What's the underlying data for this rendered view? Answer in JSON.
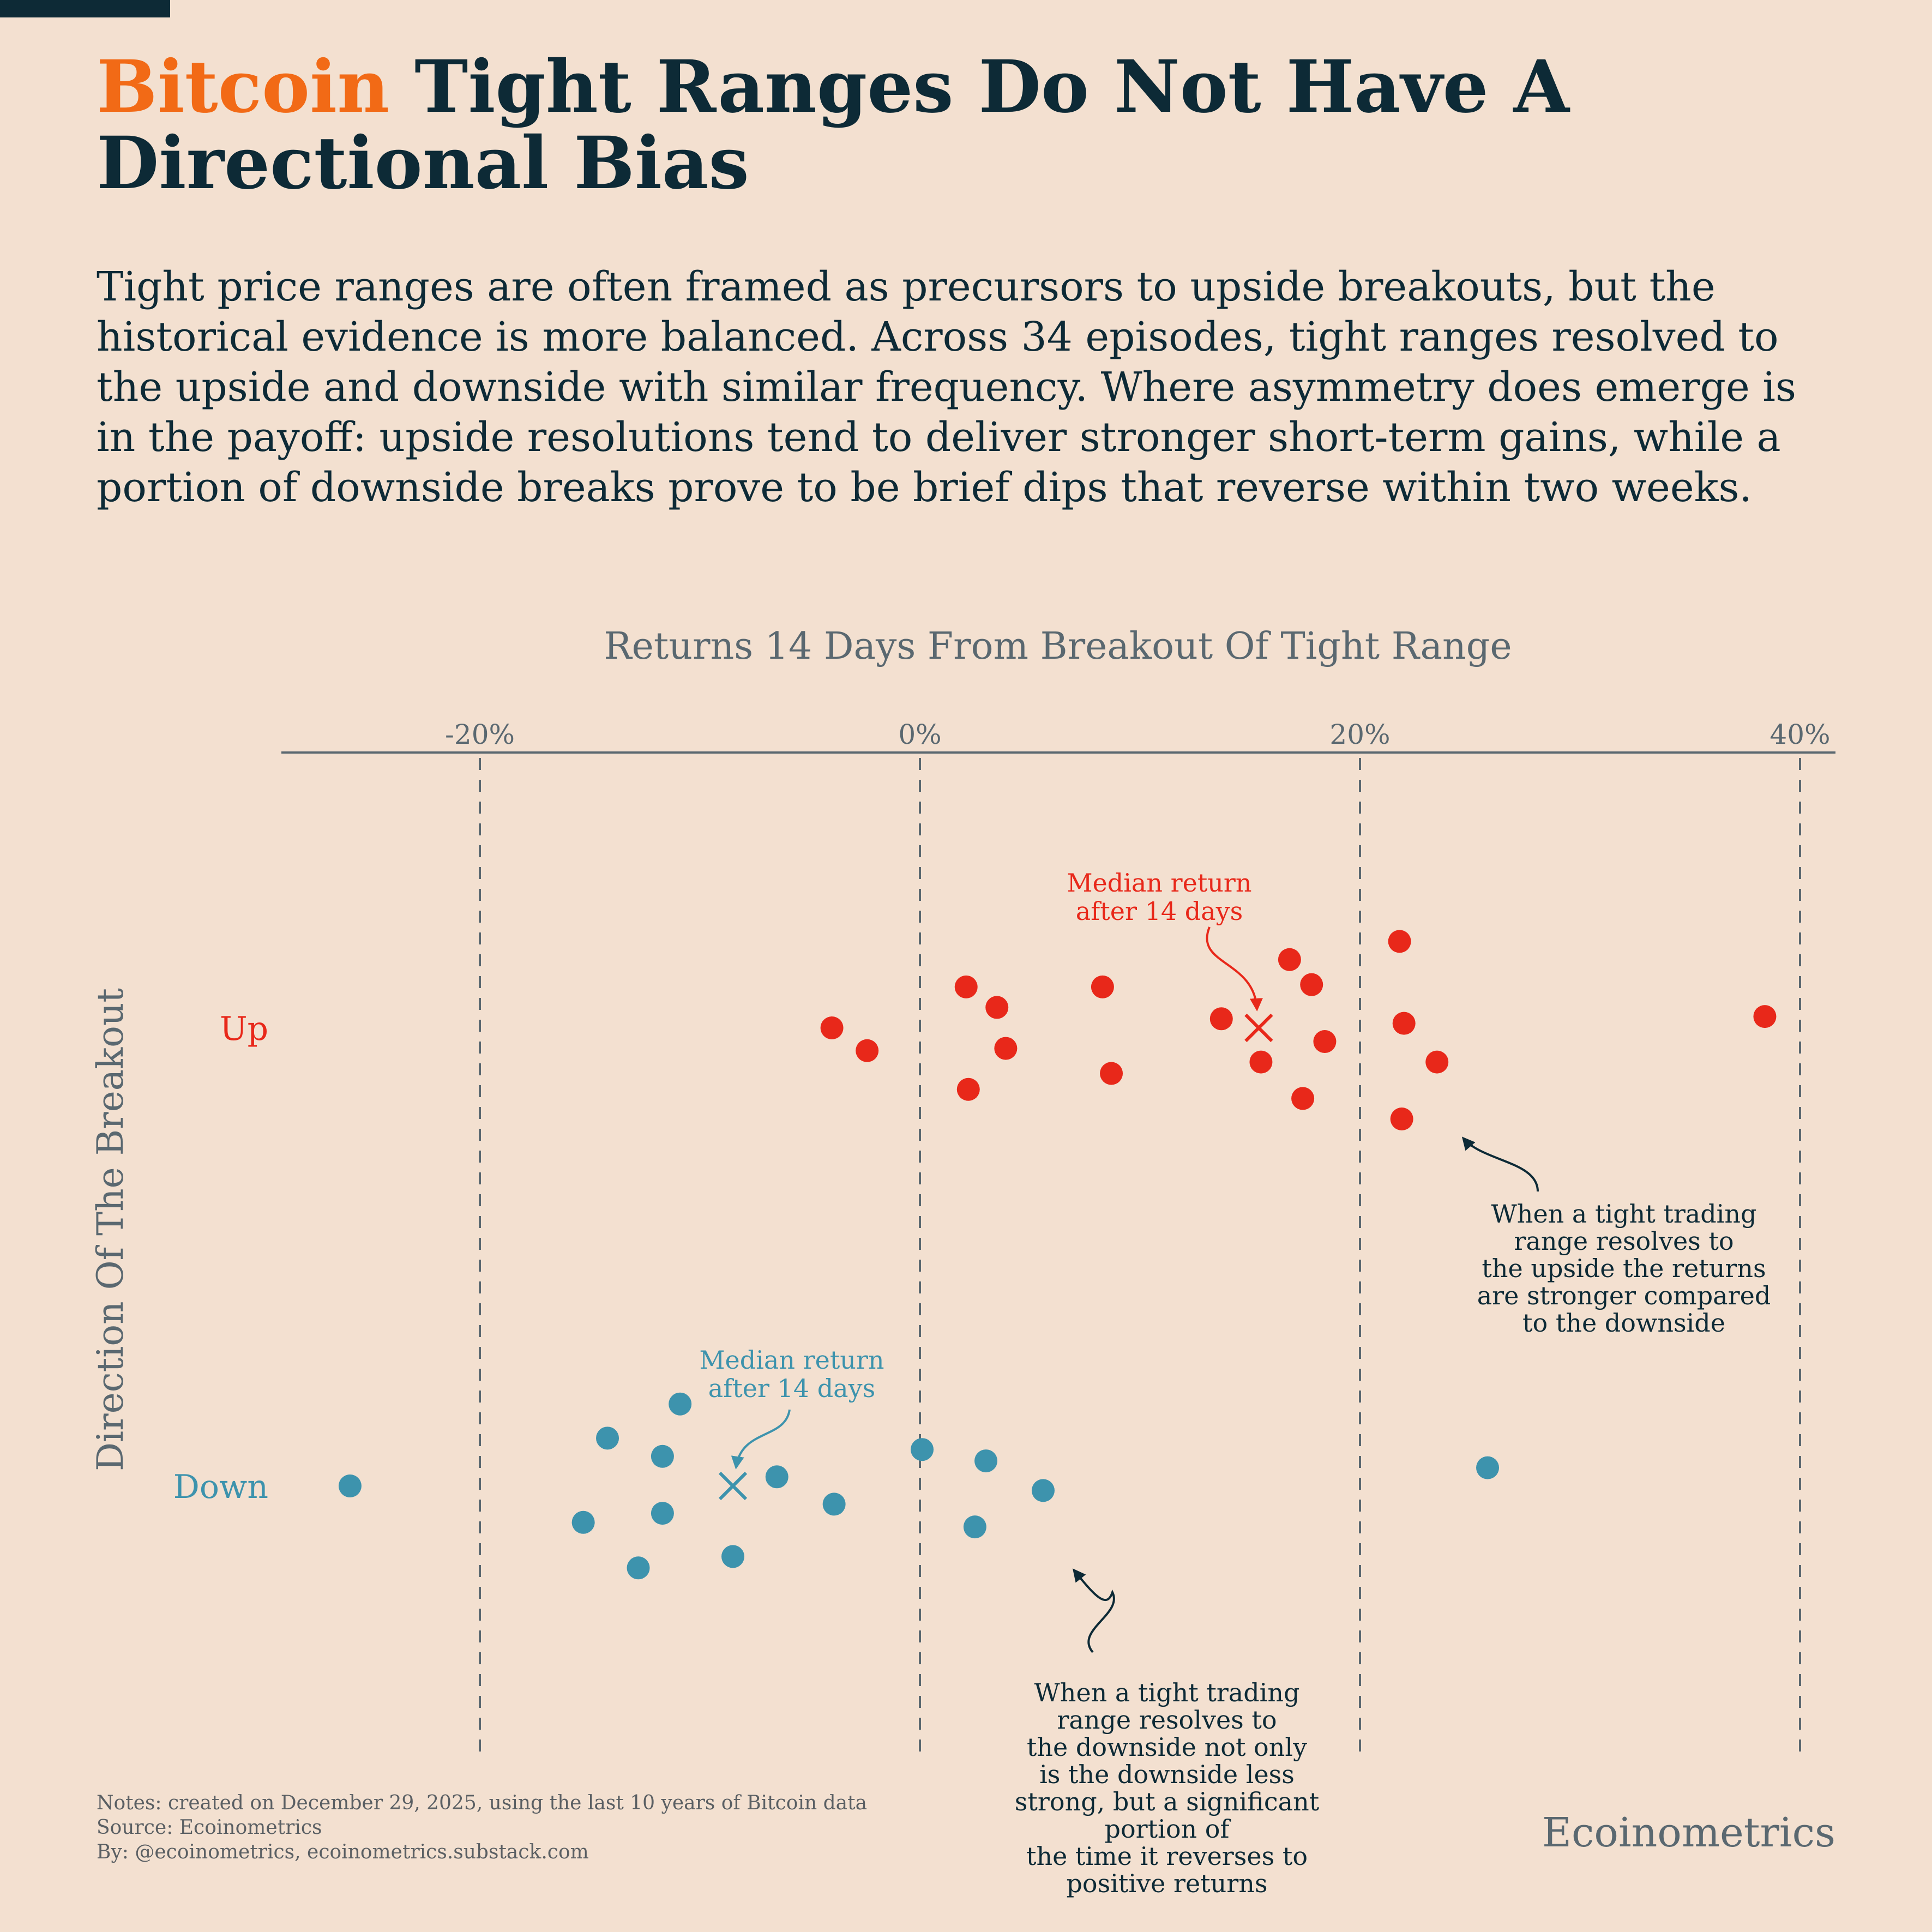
{
  "header": {
    "title_accent": "Bitcoin",
    "title_rest": " Tight Ranges Do Not Have A Directional Bias",
    "subtitle": "Tight price ranges are often framed as precursors to upside breakouts, but the historical evidence is more balanced. Across 34 episodes, tight ranges resolved to the upside and downside with similar frequency. Where asymmetry does emerge is in the payoff: upside resolutions tend to deliver stronger short-term gains, while a portion of downside breaks prove to be brief dips that reverse within two weeks."
  },
  "colors": {
    "background": "#f3e0d0",
    "accent": "#f26a16",
    "up": "#e8281a",
    "down": "#3d93ad",
    "text_dark": "#0d2a36",
    "axis_gray": "#5a6870"
  },
  "chart_data": {
    "type": "scatter",
    "title": "Returns 14 Days From Breakout Of Tight Range",
    "xlabel": "Returns 14 Days From Breakout Of Tight Range",
    "ylabel": "Direction Of The Breakout",
    "x_axis_position": "top",
    "x_ticks": [
      -20,
      0,
      20,
      40
    ],
    "x_tick_labels": [
      "-20%",
      "0%",
      "20%",
      "40%"
    ],
    "xlim": [
      -29,
      41.6
    ],
    "y_categories": [
      "Up",
      "Down"
    ],
    "jittered": true,
    "grid": "vertical dashed at ticks",
    "legend": "none",
    "series": [
      {
        "name": "Up",
        "color": "#e8281a",
        "points": [
          {
            "x": 21.8,
            "jitter": -0.38
          },
          {
            "x": 16.8,
            "jitter": -0.3
          },
          {
            "x": 2.1,
            "jitter": -0.18
          },
          {
            "x": 8.3,
            "jitter": -0.18
          },
          {
            "x": 17.8,
            "jitter": -0.19
          },
          {
            "x": 3.5,
            "jitter": -0.09
          },
          {
            "x": 13.7,
            "jitter": -0.04
          },
          {
            "x": 22.0,
            "jitter": -0.02
          },
          {
            "x": 38.4,
            "jitter": -0.05
          },
          {
            "x": -4.0,
            "jitter": 0.0
          },
          {
            "x": 18.4,
            "jitter": 0.06
          },
          {
            "x": -2.4,
            "jitter": 0.1
          },
          {
            "x": 3.9,
            "jitter": 0.09
          },
          {
            "x": 15.5,
            "jitter": 0.15
          },
          {
            "x": 23.5,
            "jitter": 0.15
          },
          {
            "x": 8.7,
            "jitter": 0.2
          },
          {
            "x": 2.2,
            "jitter": 0.27
          },
          {
            "x": 17.4,
            "jitter": 0.31
          },
          {
            "x": 21.9,
            "jitter": 0.4
          }
        ],
        "median": 15.4,
        "median_annotation": "Median return\nafter 14 days",
        "annotation": "When a tight trading\nrange resolves to\nthe upside the returns\nare stronger compared\nto the downside"
      },
      {
        "name": "Down",
        "color": "#3d93ad",
        "points": [
          {
            "x": -10.9,
            "jitter": -0.36
          },
          {
            "x": -14.2,
            "jitter": -0.21
          },
          {
            "x": -11.7,
            "jitter": -0.13
          },
          {
            "x": 0.1,
            "jitter": -0.16
          },
          {
            "x": 3.0,
            "jitter": -0.11
          },
          {
            "x": 25.8,
            "jitter": -0.08
          },
          {
            "x": -25.9,
            "jitter": 0.0
          },
          {
            "x": -6.5,
            "jitter": -0.04
          },
          {
            "x": 5.6,
            "jitter": 0.02
          },
          {
            "x": -3.9,
            "jitter": 0.08
          },
          {
            "x": -11.7,
            "jitter": 0.12
          },
          {
            "x": -15.3,
            "jitter": 0.16
          },
          {
            "x": 2.5,
            "jitter": 0.18
          },
          {
            "x": -8.5,
            "jitter": 0.31
          },
          {
            "x": -12.8,
            "jitter": 0.36
          }
        ],
        "median": -8.5,
        "median_annotation": "Median return\nafter 14 days",
        "annotation": "When a tight trading\nrange resolves to\nthe downside not only\nis the downside less\nstrong, but a significant\nportion of\nthe time it reverses to\npositive returns"
      }
    ]
  },
  "footer": {
    "notes": "Notes: created on December 29, 2025, using the last 10 years of Bitcoin data",
    "source": "Source: Ecoinometrics",
    "by": "By: @ecoinometrics, ecoinometrics.substack.com",
    "brand": "Ecoinometrics"
  }
}
